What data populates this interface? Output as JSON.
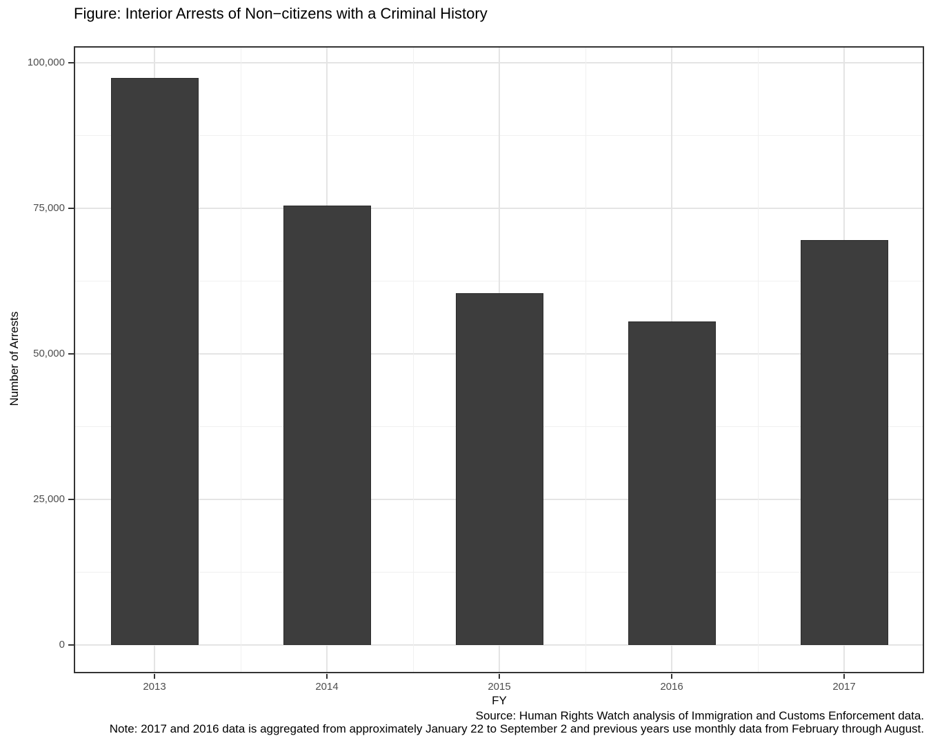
{
  "title": "Figure: Interior Arrests of Non−citizens with a Criminal History",
  "chart_data": {
    "type": "bar",
    "title": "Figure: Interior Arrests of Non−citizens with a Criminal History",
    "categories": [
      "2013",
      "2014",
      "2015",
      "2016",
      "2017"
    ],
    "values": [
      97350,
      75400,
      60400,
      55500,
      69500
    ],
    "xlabel": "FY",
    "ylabel": "Number of Arrests",
    "ylim": [
      0,
      100000
    ],
    "yticks": [
      {
        "value": 0,
        "label": "0"
      },
      {
        "value": 25000,
        "label": "25,000"
      },
      {
        "value": 50000,
        "label": "50,000"
      },
      {
        "value": 75000,
        "label": "75,000"
      },
      {
        "value": 100000,
        "label": "100,000"
      }
    ],
    "grid": {
      "major": true,
      "minor": true
    },
    "legend_position": "none",
    "bar_color": "#3D3D3D"
  },
  "caption": {
    "source": "Source: Human Rights Watch analysis of Immigration and Customs Enforcement data.",
    "note": "Note: 2017 and 2016 data is aggregated from approximately January 22 to September 2 and previous years use monthly data from February through August."
  },
  "colors": {
    "bar_fill": "#3D3D3D",
    "bar_border": "#2B2B2B",
    "grid_major": "#E4E4E4",
    "grid_minor": "#F0F0F0",
    "panel_border": "#333333",
    "tick_mark": "#333333",
    "axis_text": "#4D4D4D",
    "title_text": "#000000",
    "background": "#FFFFFF"
  }
}
